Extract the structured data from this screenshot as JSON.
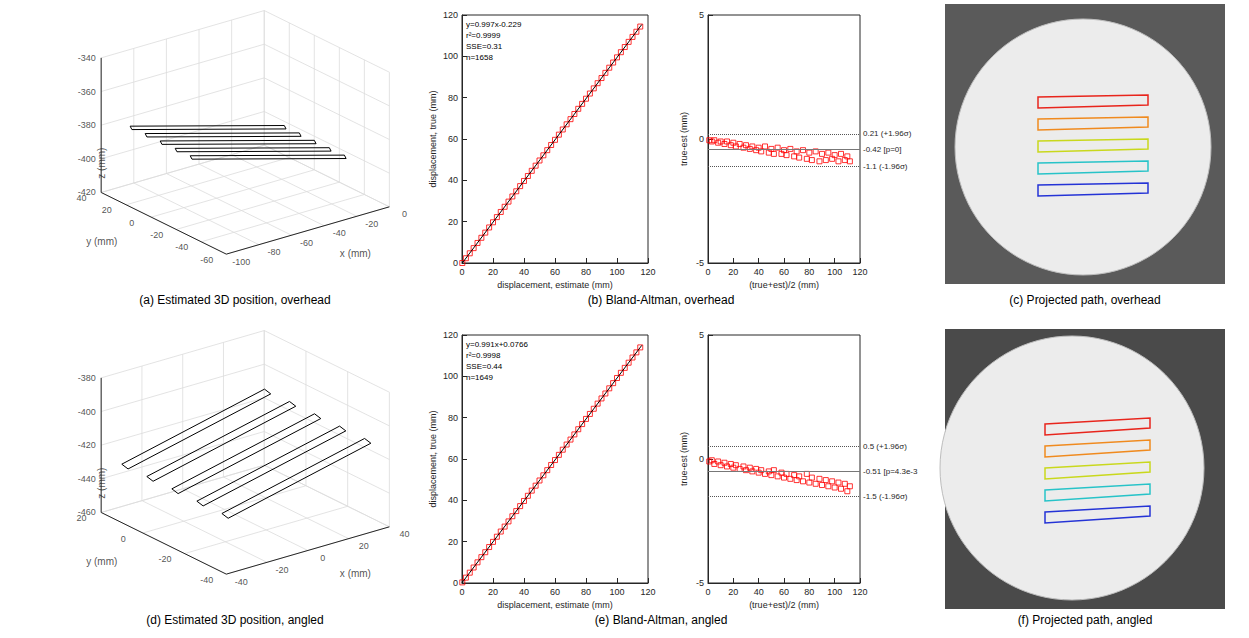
{
  "chart_data": [
    {
      "type": "line3d",
      "title": "(a) Estimated 3D position, overhead",
      "x_label": "x (mm)",
      "y_label": "y (mm)",
      "z_label": "z (mm)",
      "xlim": [
        -100,
        0
      ],
      "ylim": [
        -60,
        40
      ],
      "zlim": [
        -420,
        -340
      ],
      "xticks": [
        -100,
        -80,
        -60,
        -40,
        -20,
        0
      ],
      "yticks": [
        -60,
        -40,
        -20,
        0,
        20,
        40
      ],
      "zticks": [
        -420,
        -400,
        -380,
        -360,
        -340
      ],
      "grid": true,
      "series": [
        {
          "color": "#000000",
          "x": [
            -85,
            -25,
            -23,
            -83,
            -85,
            null,
            -85,
            -25,
            -23,
            -83,
            -85,
            null,
            -85,
            -25,
            -23,
            -83,
            -85,
            null,
            -85,
            -25,
            -23,
            -83,
            -85,
            null,
            -85,
            -25,
            -23,
            -83,
            -85
          ],
          "y": [
            35,
            -10,
            -6,
            39,
            35,
            null,
            23,
            -22,
            -18,
            27,
            23,
            null,
            11,
            -34,
            -30,
            15,
            11,
            null,
            -1,
            -46,
            -42,
            3,
            -1,
            null,
            -13,
            -58,
            -54,
            -9,
            -13
          ],
          "z": [
            -385,
            -385,
            -385,
            -385,
            -385,
            null,
            -385,
            -385,
            -385,
            -385,
            -385,
            null,
            -385,
            -385,
            -385,
            -385,
            -385,
            null,
            -385,
            -385,
            -385,
            -385,
            -385,
            null,
            -385,
            -385,
            -385,
            -385,
            -385
          ]
        }
      ]
    },
    {
      "type": "scatter",
      "title": "(b) Bland-Altman, overhead",
      "x_label": "displacement, estimate (mm)",
      "y_label": "displacement, true (mm)",
      "xlim": [
        0,
        120
      ],
      "ylim": [
        0,
        120
      ],
      "xticks": [
        0,
        20,
        40,
        60,
        80,
        100,
        120
      ],
      "yticks": [
        0,
        20,
        40,
        60,
        80,
        100,
        120
      ],
      "grid": false,
      "annotations": [
        "y=0.997x-0.229",
        "r²=0.9999",
        "SSE=0.31",
        "n=1658"
      ],
      "series": [
        {
          "type": "scatter",
          "color": "#ff0000",
          "marker": "square",
          "x": [
            0.2,
            2.5,
            5,
            7.5,
            10,
            12.5,
            15,
            17.5,
            20,
            22.5,
            25,
            27.5,
            30,
            32.5,
            35,
            37.5,
            40,
            42.5,
            45,
            47.5,
            50,
            52.5,
            55,
            57.5,
            60,
            62.5,
            65,
            67.5,
            70,
            72.5,
            75,
            77.5,
            80,
            82.5,
            85,
            87.5,
            90,
            92.5,
            95,
            97.5,
            100,
            102.5,
            105,
            107.5,
            110,
            112.5,
            115
          ],
          "values": [
            0,
            2.3,
            4.7,
            7.2,
            9.7,
            12.2,
            14.7,
            17.2,
            19.7,
            22.2,
            24.7,
            27.2,
            29.7,
            32.2,
            34.7,
            37.2,
            39.7,
            42.1,
            44.6,
            47.1,
            49.6,
            52.1,
            54.6,
            57.1,
            59.6,
            62.1,
            64.6,
            67.1,
            69.6,
            72.1,
            74.6,
            77.0,
            79.5,
            82.0,
            84.5,
            87.0,
            89.5,
            92.0,
            94.5,
            97.0,
            99.5,
            102.0,
            104.5,
            107.0,
            109.4,
            111.9,
            114.4
          ]
        },
        {
          "type": "line",
          "color": "#000000",
          "line_style": "solid",
          "x": [
            0.2,
            116
          ],
          "values": [
            0,
            115.4
          ]
        }
      ]
    },
    {
      "type": "scatter",
      "x_label": "(true+est)/2 (mm)",
      "y_label": "true-est (mm)",
      "xlim": [
        0,
        120
      ],
      "ylim": [
        -5,
        5
      ],
      "xticks": [
        0,
        20,
        40,
        60,
        80,
        100,
        120
      ],
      "yticks": [
        -5,
        0,
        5
      ],
      "grid": false,
      "series": [
        {
          "type": "scatter",
          "color": "#ff0000",
          "marker": "square",
          "x": [
            1,
            3,
            5,
            8,
            10,
            13,
            15,
            18,
            20,
            22,
            25,
            28,
            30,
            33,
            35,
            38,
            40,
            42,
            45,
            48,
            50,
            52,
            55,
            58,
            60,
            62,
            65,
            68,
            70,
            72,
            75,
            78,
            80,
            82,
            85,
            88,
            90,
            93,
            95,
            98,
            100,
            103,
            105,
            108,
            110,
            112
          ],
          "values": [
            -0.05,
            -0.1,
            -0.05,
            -0.15,
            -0.1,
            -0.2,
            -0.1,
            -0.25,
            -0.15,
            -0.3,
            -0.2,
            -0.35,
            -0.25,
            -0.4,
            -0.3,
            -0.45,
            -0.35,
            -0.5,
            -0.3,
            -0.55,
            -0.4,
            -0.6,
            -0.35,
            -0.6,
            -0.45,
            -0.65,
            -0.4,
            -0.7,
            -0.5,
            -0.75,
            -0.45,
            -0.8,
            -0.55,
            -0.85,
            -0.5,
            -0.9,
            -0.6,
            -0.85,
            -0.55,
            -0.8,
            -0.65,
            -0.9,
            -0.6,
            -0.85,
            -0.7,
            -0.9
          ]
        }
      ],
      "reference_lines": [
        {
          "value": 0.21,
          "label": "0.21 (+1.96σ)",
          "line_style": "dotted"
        },
        {
          "value": -0.42,
          "label": "-0.42 [p=0]",
          "line_style": "solid"
        },
        {
          "value": -1.1,
          "label": "-1.1 (-1.96σ)",
          "line_style": "dotted"
        }
      ]
    },
    {
      "type": "image",
      "title": "(c) Projected path, overhead",
      "colors": [
        "#e8251c",
        "#f08a1e",
        "#c9d81c",
        "#27c3c8",
        "#2433d6"
      ]
    },
    {
      "type": "line3d",
      "title": "(d) Estimated 3D position, angled",
      "x_label": "x (mm)",
      "y_label": "y (mm)",
      "z_label": "z (mm)",
      "xlim": [
        -40,
        40
      ],
      "ylim": [
        -40,
        20
      ],
      "zlim": [
        -460,
        -380
      ],
      "xticks": [
        -40,
        -20,
        0,
        20,
        40
      ],
      "yticks": [
        -40,
        -20,
        0,
        20
      ],
      "zticks": [
        -460,
        -440,
        -420,
        -400,
        -380
      ],
      "grid": true,
      "series": [
        {
          "color": "#000000",
          "x": [
            -35,
            35,
            35,
            -35,
            -35,
            null,
            -35,
            35,
            35,
            -35,
            -35,
            null,
            -35,
            35,
            35,
            -35,
            -35,
            null,
            -35,
            35,
            35,
            -35,
            -35,
            null,
            -35,
            35,
            35,
            -35,
            -35
          ],
          "y": [
            15,
            15,
            12,
            12,
            15,
            null,
            3,
            3,
            0,
            0,
            3,
            null,
            -9,
            -9,
            -12,
            -12,
            -9,
            null,
            -21,
            -21,
            -24,
            -24,
            -21,
            null,
            -33,
            -33,
            -36,
            -36,
            -33
          ],
          "z": [
            -430,
            -410,
            -411,
            -431,
            -430,
            null,
            -430,
            -410,
            -411,
            -431,
            -430,
            null,
            -430,
            -410,
            -411,
            -431,
            -430,
            null,
            -430,
            -410,
            -411,
            -431,
            -430,
            null,
            -430,
            -410,
            -411,
            -431,
            -430
          ]
        }
      ]
    },
    {
      "type": "scatter",
      "title": "(e) Bland-Altman, angled",
      "x_label": "displacement, estimate (mm)",
      "y_label": "displacement, true (mm)",
      "xlim": [
        0,
        120
      ],
      "ylim": [
        0,
        120
      ],
      "xticks": [
        0,
        20,
        40,
        60,
        80,
        100,
        120
      ],
      "yticks": [
        0,
        20,
        40,
        60,
        80,
        100,
        120
      ],
      "grid": false,
      "annotations": [
        "y=0.991x+0.0766",
        "r²=0.9998",
        "SSE=0.44",
        "n=1649"
      ],
      "series": [
        {
          "type": "scatter",
          "color": "#ff0000",
          "marker": "square",
          "x": [
            0.2,
            2.5,
            5,
            7.5,
            10,
            12.5,
            15,
            17.5,
            20,
            22.5,
            25,
            27.5,
            30,
            32.5,
            35,
            37.5,
            40,
            42.5,
            45,
            47.5,
            50,
            52.5,
            55,
            57.5,
            60,
            62.5,
            65,
            67.5,
            70,
            72.5,
            75,
            77.5,
            80,
            82.5,
            85,
            87.5,
            90,
            92.5,
            95,
            97.5,
            100,
            102.5,
            105,
            107.5,
            110,
            112.5,
            115
          ],
          "values": [
            0.3,
            2.6,
            5.0,
            7.5,
            10.0,
            12.5,
            14.9,
            17.4,
            19.9,
            22.4,
            24.9,
            27.3,
            29.8,
            32.3,
            34.8,
            37.2,
            39.7,
            42.2,
            44.7,
            47.1,
            49.6,
            52.1,
            54.6,
            57.1,
            59.5,
            62.0,
            64.5,
            67.0,
            69.4,
            71.9,
            74.4,
            76.9,
            79.4,
            81.8,
            84.3,
            86.8,
            89.3,
            91.7,
            94.2,
            96.7,
            99.2,
            101.7,
            104.1,
            106.6,
            109.1,
            111.6,
            114.0
          ]
        },
        {
          "type": "line",
          "color": "#000000",
          "line_style": "solid",
          "x": [
            0,
            116
          ],
          "values": [
            0.1,
            115.0
          ]
        }
      ]
    },
    {
      "type": "scatter",
      "x_label": "(true+est)/2 (mm)",
      "y_label": "true-est (mm)",
      "xlim": [
        0,
        120
      ],
      "ylim": [
        -5,
        5
      ],
      "xticks": [
        0,
        20,
        40,
        60,
        80,
        100,
        120
      ],
      "yticks": [
        -5,
        0,
        5
      ],
      "grid": false,
      "series": [
        {
          "type": "scatter",
          "color": "#ff0000",
          "marker": "square",
          "x": [
            1,
            3,
            5,
            8,
            10,
            13,
            15,
            18,
            20,
            22,
            25,
            28,
            30,
            33,
            35,
            38,
            40,
            42,
            45,
            48,
            50,
            52,
            55,
            58,
            60,
            62,
            65,
            68,
            70,
            72,
            75,
            78,
            80,
            82,
            85,
            88,
            90,
            93,
            95,
            98,
            100,
            103,
            105,
            108,
            110,
            112
          ],
          "values": [
            -0.1,
            -0.05,
            -0.2,
            -0.1,
            -0.25,
            -0.15,
            -0.3,
            -0.2,
            -0.35,
            -0.25,
            -0.4,
            -0.3,
            -0.45,
            -0.35,
            -0.5,
            -0.4,
            -0.55,
            -0.45,
            -0.6,
            -0.5,
            -0.65,
            -0.45,
            -0.7,
            -0.55,
            -0.75,
            -0.6,
            -0.8,
            -0.65,
            -0.85,
            -0.7,
            -0.9,
            -0.6,
            -0.95,
            -0.75,
            -1.0,
            -0.8,
            -1.05,
            -0.85,
            -1.1,
            -0.9,
            -1.15,
            -0.95,
            -1.2,
            -1.0,
            -1.3,
            -1.1
          ]
        }
      ],
      "reference_lines": [
        {
          "value": 0.5,
          "label": "0.5 (+1.96σ)",
          "line_style": "dotted"
        },
        {
          "value": -0.51,
          "label": "-0.51 [p=4.3e-3",
          "line_style": "solid"
        },
        {
          "value": -1.5,
          "label": "-1.5 (-1.96σ)",
          "line_style": "dotted"
        }
      ]
    },
    {
      "type": "image",
      "title": "(f) Projected path, angled",
      "colors": [
        "#e8251c",
        "#f08a1e",
        "#c9d81c",
        "#27c3c8",
        "#2433d6"
      ]
    }
  ]
}
